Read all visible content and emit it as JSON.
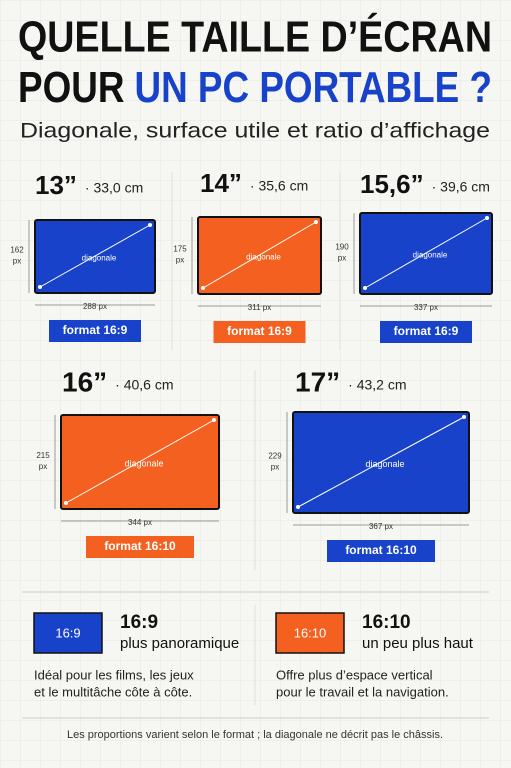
{
  "header": {
    "title_line1": "QUELLE TAILLE D’ÉCRAN",
    "title_line2_a": "POUR",
    "title_line2_b": "UN PC PORTABLE ?",
    "subtitle": "Diagonale, surface utile et ratio d’affichage"
  },
  "screens": [
    {
      "size": "13”",
      "cm": "· 33,0 cm",
      "height": "162",
      "height_unit": "px",
      "width": "288 px",
      "diagonal": "diagonale",
      "format": "format 16:9",
      "color": "#1742c9"
    },
    {
      "size": "14”",
      "cm": "· 35,6 cm",
      "height": "175",
      "height_unit": "px",
      "width": "311 px",
      "diagonal": "diagonale",
      "format": "format 16:9",
      "color": "#f4601f"
    },
    {
      "size": "15,6”",
      "cm": "· 39,6 cm",
      "height": "190",
      "height_unit": "px",
      "width": "337 px",
      "diagonal": "diagonale",
      "format": "format 16:9",
      "color": "#1742c9"
    },
    {
      "size": "16”",
      "cm": "· 40,6 cm",
      "height": "215",
      "height_unit": "px",
      "width": "344 px",
      "diagonal": "diagonale",
      "format": "format 16:10",
      "color": "#f4601f"
    },
    {
      "size": "17”",
      "cm": "· 43,2 cm",
      "height": "229",
      "height_unit": "px",
      "width": "367 px",
      "diagonal": "diagonale",
      "format": "format 16:10",
      "color": "#1742c9"
    }
  ],
  "legend": [
    {
      "badge": "16:9",
      "title": "16:9",
      "subtitle": "plus panoramique",
      "desc_line1": "Idéal pour les films, les jeux",
      "desc_line2": "et le multitâche côte à côte.",
      "color": "#1742c9"
    },
    {
      "badge": "16:10",
      "title": "16:10",
      "subtitle": "un peu plus haut",
      "desc_line1": "Offre plus d’espace vertical",
      "desc_line2": "pour le travail et la navigation.",
      "color": "#f4601f"
    }
  ],
  "footer": "Les proportions varient selon le format ; la diagonale ne décrit pas le châssis."
}
